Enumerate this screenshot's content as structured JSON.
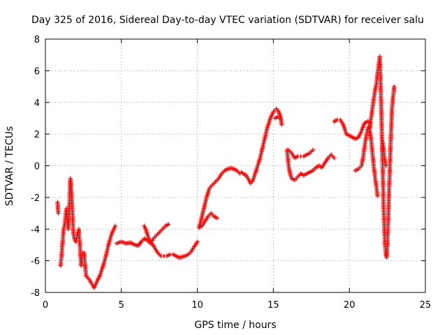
{
  "chart_data": {
    "type": "scatter",
    "title": "Day 325 of 2016, Sidereal Day-to-day VTEC variation (SDTVAR) for receiver salu",
    "xlabel": "GPS time / hours",
    "ylabel": "SDTVAR / TECUs",
    "xlim": [
      0,
      25
    ],
    "ylim": [
      -8,
      8
    ],
    "xticks": [
      "0",
      "5",
      "10",
      "15",
      "20",
      "25"
    ],
    "yticks": [
      "-8",
      "-6",
      "-4",
      "-2",
      "0",
      "2",
      "4",
      "6",
      "8"
    ],
    "grid": true,
    "marker": "plus",
    "color": "#ff0000",
    "segments": [
      [
        [
          0.8,
          -2.3
        ],
        [
          0.85,
          -3.0
        ]
      ],
      [
        [
          1.0,
          -6.3
        ],
        [
          1.05,
          -5.8
        ],
        [
          1.1,
          -5.2
        ],
        [
          1.15,
          -4.6
        ],
        [
          1.2,
          -4.0
        ],
        [
          1.3,
          -3.6
        ],
        [
          1.35,
          -3.0
        ],
        [
          1.4,
          -2.7
        ],
        [
          1.45,
          -3.5
        ],
        [
          1.5,
          -4.0
        ],
        [
          1.55,
          -3.3
        ],
        [
          1.6,
          -2.0
        ],
        [
          1.62,
          -1.2
        ],
        [
          1.65,
          -0.8
        ],
        [
          1.7,
          -1.5
        ],
        [
          1.75,
          -2.5
        ],
        [
          1.8,
          -3.5
        ],
        [
          1.85,
          -4.3
        ],
        [
          1.9,
          -4.6
        ],
        [
          2.0,
          -4.8
        ],
        [
          2.1,
          -4.4
        ],
        [
          2.2,
          -4.0
        ]
      ],
      [
        [
          2.2,
          -4.1
        ],
        [
          2.25,
          -4.8
        ],
        [
          2.3,
          -5.5
        ],
        [
          2.35,
          -6.3
        ],
        [
          2.4,
          -6.0
        ],
        [
          2.45,
          -5.5
        ],
        [
          2.55,
          -5.5
        ],
        [
          2.6,
          -6.2
        ],
        [
          2.65,
          -6.7
        ],
        [
          2.7,
          -7.0
        ],
        [
          2.8,
          -7.1
        ],
        [
          2.9,
          -7.2
        ],
        [
          3.0,
          -7.4
        ],
        [
          3.1,
          -7.5
        ],
        [
          3.2,
          -7.7
        ],
        [
          3.3,
          -7.5
        ],
        [
          3.4,
          -7.3
        ],
        [
          3.5,
          -7.1
        ],
        [
          3.6,
          -6.9
        ],
        [
          3.7,
          -6.6
        ],
        [
          3.8,
          -6.3
        ],
        [
          3.9,
          -6.0
        ],
        [
          4.0,
          -5.6
        ],
        [
          4.1,
          -5.2
        ],
        [
          4.2,
          -4.8
        ],
        [
          4.3,
          -4.5
        ],
        [
          4.4,
          -4.2
        ],
        [
          4.5,
          -4.0
        ],
        [
          4.6,
          -3.8
        ]
      ],
      [
        [
          4.7,
          -4.9
        ],
        [
          5.0,
          -4.8
        ],
        [
          5.3,
          -4.9
        ],
        [
          5.6,
          -4.85
        ],
        [
          5.9,
          -5.0
        ],
        [
          6.1,
          -5.05
        ],
        [
          6.3,
          -4.8
        ],
        [
          6.5,
          -4.6
        ],
        [
          6.7,
          -4.7
        ],
        [
          6.9,
          -4.9
        ],
        [
          7.1,
          -4.6
        ],
        [
          7.3,
          -4.4
        ],
        [
          7.5,
          -4.2
        ],
        [
          7.7,
          -4.0
        ],
        [
          7.9,
          -3.8
        ],
        [
          8.1,
          -3.7
        ]
      ],
      [
        [
          6.5,
          -3.8
        ],
        [
          6.6,
          -4.0
        ],
        [
          6.7,
          -4.3
        ],
        [
          6.8,
          -4.6
        ],
        [
          7.0,
          -4.9
        ],
        [
          7.2,
          -5.2
        ],
        [
          7.4,
          -5.5
        ],
        [
          7.6,
          -5.7
        ],
        [
          7.8,
          -5.7
        ],
        [
          8.0,
          -5.7
        ],
        [
          8.2,
          -5.6
        ],
        [
          8.4,
          -5.6
        ],
        [
          8.6,
          -5.7
        ],
        [
          8.8,
          -5.8
        ],
        [
          9.0,
          -5.75
        ],
        [
          9.2,
          -5.7
        ],
        [
          9.4,
          -5.6
        ],
        [
          9.6,
          -5.4
        ],
        [
          9.8,
          -5.1
        ],
        [
          10.0,
          -4.8
        ]
      ],
      [
        [
          10.1,
          -3.9
        ],
        [
          10.3,
          -3.8
        ],
        [
          10.5,
          -3.5
        ],
        [
          10.7,
          -3.2
        ],
        [
          10.9,
          -3.0
        ],
        [
          11.1,
          -3.2
        ],
        [
          11.3,
          -3.3
        ]
      ],
      [
        [
          10.1,
          -3.9
        ],
        [
          10.2,
          -3.6
        ],
        [
          10.3,
          -3.2
        ],
        [
          10.4,
          -2.8
        ],
        [
          10.5,
          -2.4
        ],
        [
          10.6,
          -2.0
        ],
        [
          10.7,
          -1.7
        ],
        [
          10.8,
          -1.4
        ],
        [
          11.0,
          -1.2
        ],
        [
          11.2,
          -1.0
        ],
        [
          11.4,
          -0.8
        ],
        [
          11.6,
          -0.5
        ],
        [
          11.8,
          -0.3
        ],
        [
          12.0,
          -0.2
        ],
        [
          12.2,
          -0.15
        ],
        [
          12.4,
          -0.2
        ],
        [
          12.6,
          -0.3
        ],
        [
          12.8,
          -0.5
        ],
        [
          12.9,
          -0.4
        ],
        [
          13.0,
          -0.5
        ],
        [
          13.2,
          -0.6
        ],
        [
          13.4,
          -0.9
        ],
        [
          13.5,
          -1.1
        ],
        [
          13.6,
          -1.0
        ],
        [
          13.7,
          -0.8
        ],
        [
          13.8,
          -0.5
        ],
        [
          13.9,
          -0.2
        ],
        [
          14.0,
          0.1
        ],
        [
          14.1,
          0.4
        ],
        [
          14.2,
          0.8
        ],
        [
          14.3,
          1.2
        ],
        [
          14.4,
          1.6
        ],
        [
          14.5,
          2.0
        ],
        [
          14.6,
          2.4
        ],
        [
          14.7,
          2.7
        ],
        [
          14.8,
          3.0
        ],
        [
          14.9,
          3.2
        ],
        [
          15.0,
          3.4
        ],
        [
          15.1,
          3.5
        ],
        [
          15.2,
          3.6
        ],
        [
          15.3,
          3.5
        ],
        [
          15.4,
          3.3
        ],
        [
          15.5,
          3.0
        ],
        [
          15.55,
          2.6
        ]
      ],
      [
        [
          15.1,
          3.0
        ],
        [
          15.3,
          3.1
        ],
        [
          15.5,
          2.9
        ]
      ],
      [
        [
          15.9,
          1.0
        ],
        [
          15.95,
          0.5
        ],
        [
          16.0,
          0.0
        ],
        [
          16.1,
          -0.5
        ],
        [
          16.2,
          -0.8
        ],
        [
          16.4,
          -0.9
        ],
        [
          16.6,
          -0.7
        ],
        [
          16.8,
          -0.5
        ],
        [
          17.0,
          -0.6
        ],
        [
          17.2,
          -0.5
        ],
        [
          17.4,
          -0.4
        ],
        [
          17.6,
          -0.3
        ],
        [
          17.8,
          -0.1
        ],
        [
          18.0,
          0.0
        ],
        [
          18.2,
          -0.1
        ],
        [
          18.4,
          0.2
        ],
        [
          18.6,
          0.5
        ],
        [
          18.8,
          0.7
        ],
        [
          19.0,
          0.5
        ]
      ],
      [
        [
          16.0,
          1.0
        ],
        [
          16.2,
          0.8
        ],
        [
          16.4,
          0.5
        ],
        [
          16.6,
          0.6
        ],
        [
          16.8,
          0.6
        ],
        [
          17.0,
          0.6
        ],
        [
          17.2,
          0.7
        ],
        [
          17.4,
          0.8
        ],
        [
          17.6,
          1.0
        ]
      ],
      [
        [
          19.0,
          2.8
        ],
        [
          19.2,
          2.9
        ],
        [
          19.4,
          2.9
        ],
        [
          19.6,
          2.6
        ],
        [
          19.8,
          2.0
        ],
        [
          20.0,
          1.9
        ],
        [
          20.2,
          1.8
        ],
        [
          20.4,
          1.7
        ],
        [
          20.6,
          1.8
        ],
        [
          20.8,
          2.2
        ],
        [
          21.0,
          2.7
        ],
        [
          21.2,
          2.8
        ],
        [
          21.4,
          2.7
        ]
      ],
      [
        [
          20.4,
          -0.3
        ],
        [
          20.6,
          -0.2
        ],
        [
          20.8,
          0.0
        ],
        [
          20.9,
          0.5
        ],
        [
          21.0,
          1.2
        ],
        [
          21.1,
          1.8
        ],
        [
          21.2,
          2.3
        ],
        [
          21.3,
          2.5
        ],
        [
          21.4,
          1.9
        ],
        [
          21.5,
          1.0
        ],
        [
          21.6,
          0.0
        ],
        [
          21.7,
          -0.8
        ],
        [
          21.8,
          -1.5
        ],
        [
          21.85,
          -1.9
        ]
      ],
      [
        [
          21.3,
          2.0
        ],
        [
          21.4,
          2.8
        ],
        [
          21.5,
          3.5
        ],
        [
          21.6,
          4.2
        ],
        [
          21.7,
          4.8
        ],
        [
          21.8,
          5.3
        ],
        [
          21.85,
          5.8
        ],
        [
          21.9,
          6.1
        ],
        [
          21.95,
          6.5
        ],
        [
          22.0,
          6.9
        ],
        [
          22.05,
          5.5
        ],
        [
          22.1,
          3.5
        ],
        [
          22.15,
          1.5
        ],
        [
          22.2,
          -0.5
        ],
        [
          22.25,
          -2.5
        ],
        [
          22.3,
          -4.0
        ],
        [
          22.35,
          -5.0
        ],
        [
          22.4,
          -5.6
        ],
        [
          22.45,
          -5.8
        ],
        [
          22.5,
          -5.0
        ],
        [
          22.55,
          -3.5
        ],
        [
          22.6,
          -2.0
        ],
        [
          22.65,
          -0.5
        ],
        [
          22.7,
          1.0
        ],
        [
          22.75,
          2.3
        ],
        [
          22.8,
          3.5
        ],
        [
          22.85,
          4.2
        ],
        [
          22.9,
          4.5
        ],
        [
          22.95,
          5.0
        ]
      ],
      [
        [
          22.2,
          1.5
        ],
        [
          22.25,
          1.0
        ],
        [
          22.3,
          0.5
        ],
        [
          22.4,
          0.0
        ]
      ]
    ]
  }
}
